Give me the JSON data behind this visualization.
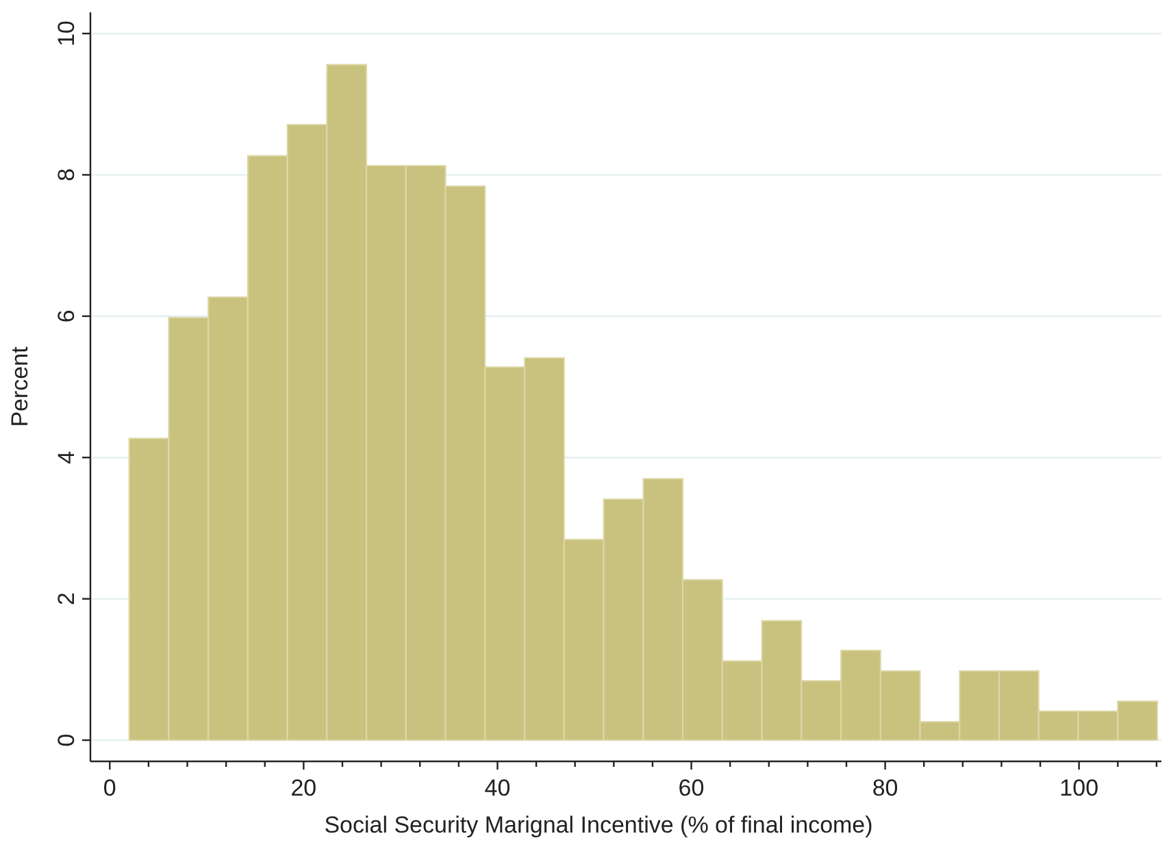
{
  "chart_data": {
    "type": "histogram",
    "xlabel": "Social Security Marignal Incentive (% of final income)",
    "ylabel": "Percent",
    "bins": [
      2,
      6.08,
      10.16,
      14.24,
      18.32,
      22.4,
      26.48,
      30.56,
      34.64,
      38.72,
      42.8,
      46.88,
      50.96,
      55.04,
      59.12,
      63.2,
      67.28,
      71.36,
      75.44,
      79.52,
      83.6,
      87.68,
      91.76,
      95.84,
      99.92,
      104,
      108.08
    ],
    "values": [
      4.27,
      5.98,
      6.27,
      8.27,
      8.71,
      9.56,
      8.13,
      8.13,
      7.84,
      5.28,
      5.41,
      2.84,
      3.41,
      3.7,
      2.27,
      1.12,
      1.69,
      0.84,
      1.27,
      0.98,
      0.26,
      0.98,
      0.98,
      0.41,
      0.41,
      0.55
    ],
    "color": "#c9c27f",
    "xlim": [
      -2,
      108.5
    ],
    "ylim": [
      -0.3,
      10.3
    ],
    "xticks": [
      0,
      {
        "value": 4,
        "label": null
      },
      {
        "value": 8,
        "label": null
      },
      {
        "value": 12,
        "label": null
      },
      {
        "value": 16,
        "label": null
      },
      20,
      {
        "value": 24,
        "label": null
      },
      {
        "value": 28,
        "label": null
      },
      {
        "value": 32,
        "label": null
      },
      {
        "value": 36,
        "label": null
      },
      40,
      {
        "value": 44,
        "label": null
      },
      {
        "value": 48,
        "label": null
      },
      {
        "value": 52,
        "label": null
      },
      {
        "value": 56,
        "label": null
      },
      60,
      {
        "value": 64,
        "label": null
      },
      {
        "value": 68,
        "label": null
      },
      {
        "value": 72,
        "label": null
      },
      {
        "value": 76,
        "label": null
      },
      80,
      {
        "value": 84,
        "label": null
      },
      {
        "value": 88,
        "label": null
      },
      {
        "value": 92,
        "label": null
      },
      {
        "value": 96,
        "label": null
      },
      100,
      {
        "value": 104,
        "label": null
      },
      {
        "value": 108,
        "label": null
      }
    ],
    "yticks": [
      0,
      2,
      4,
      6,
      8,
      10
    ],
    "grid": "y"
  }
}
